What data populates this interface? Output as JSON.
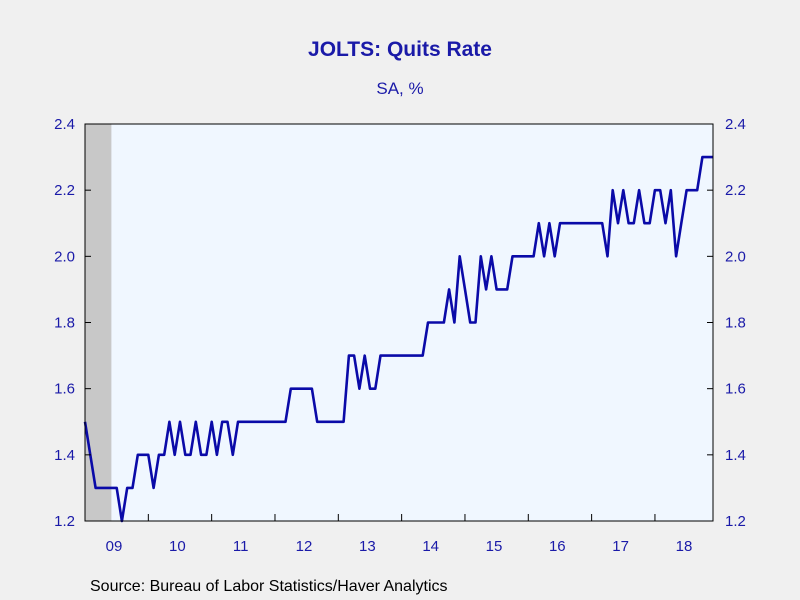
{
  "chart_data": {
    "type": "line",
    "title": "JOLTS: Quits Rate",
    "subtitle": "SA, %",
    "source": "Source:  Bureau of Labor Statistics/Haver Analytics",
    "ylim": [
      1.2,
      2.4
    ],
    "y_ticks": [
      "1.2",
      "1.4",
      "1.6",
      "1.8",
      "2.0",
      "2.2",
      "2.4"
    ],
    "x_ticks": [
      "09",
      "10",
      "11",
      "12",
      "13",
      "14",
      "15",
      "16",
      "17",
      "18"
    ],
    "x_range": [
      "2009-01",
      "2018-12"
    ],
    "recession_shading": [
      "2009-01",
      "2009-06"
    ],
    "grid": false,
    "colors": {
      "line": "#0a0aa8",
      "plot_bg": "#f0f7ff",
      "recession": "#c8c8c8",
      "text": "#1a1aa8"
    },
    "series": [
      {
        "x": [
          "2009-01",
          "2009-02",
          "2009-03",
          "2009-04",
          "2009-05",
          "2009-06",
          "2009-07",
          "2009-08",
          "2009-09",
          "2009-10",
          "2009-11",
          "2009-12",
          "2010-01",
          "2010-02",
          "2010-03",
          "2010-04",
          "2010-05",
          "2010-06",
          "2010-07",
          "2010-08",
          "2010-09",
          "2010-10",
          "2010-11",
          "2010-12",
          "2011-01",
          "2011-02",
          "2011-03",
          "2011-04",
          "2011-05",
          "2011-06",
          "2011-07",
          "2011-08",
          "2011-09",
          "2011-10",
          "2011-11",
          "2011-12",
          "2012-01",
          "2012-02",
          "2012-03",
          "2012-04",
          "2012-05",
          "2012-06",
          "2012-07",
          "2012-08",
          "2012-09",
          "2012-10",
          "2012-11",
          "2012-12",
          "2013-01",
          "2013-02",
          "2013-03",
          "2013-04",
          "2013-05",
          "2013-06",
          "2013-07",
          "2013-08",
          "2013-09",
          "2013-10",
          "2013-11",
          "2013-12",
          "2014-01",
          "2014-02",
          "2014-03",
          "2014-04",
          "2014-05",
          "2014-06",
          "2014-07",
          "2014-08",
          "2014-09",
          "2014-10",
          "2014-11",
          "2014-12",
          "2015-01",
          "2015-02",
          "2015-03",
          "2015-04",
          "2015-05",
          "2015-06",
          "2015-07",
          "2015-08",
          "2015-09",
          "2015-10",
          "2015-11",
          "2015-12",
          "2016-01",
          "2016-02",
          "2016-03",
          "2016-04",
          "2016-05",
          "2016-06",
          "2016-07",
          "2016-08",
          "2016-09",
          "2016-10",
          "2016-11",
          "2016-12",
          "2017-01",
          "2017-02",
          "2017-03",
          "2017-04",
          "2017-05",
          "2017-06",
          "2017-07",
          "2017-08",
          "2017-09",
          "2017-10",
          "2017-11",
          "2017-12",
          "2018-01",
          "2018-02",
          "2018-03",
          "2018-04",
          "2018-05",
          "2018-06",
          "2018-07",
          "2018-08",
          "2018-09",
          "2018-10",
          "2018-11",
          "2018-12"
        ],
        "values": [
          1.5,
          1.4,
          1.3,
          1.3,
          1.3,
          1.3,
          1.3,
          1.2,
          1.3,
          1.3,
          1.4,
          1.4,
          1.4,
          1.3,
          1.4,
          1.4,
          1.5,
          1.4,
          1.5,
          1.4,
          1.4,
          1.5,
          1.4,
          1.4,
          1.5,
          1.4,
          1.5,
          1.5,
          1.4,
          1.5,
          1.5,
          1.5,
          1.5,
          1.5,
          1.5,
          1.5,
          1.5,
          1.5,
          1.5,
          1.6,
          1.6,
          1.6,
          1.6,
          1.6,
          1.5,
          1.5,
          1.5,
          1.5,
          1.5,
          1.5,
          1.7,
          1.7,
          1.6,
          1.7,
          1.6,
          1.6,
          1.7,
          1.7,
          1.7,
          1.7,
          1.7,
          1.7,
          1.7,
          1.7,
          1.7,
          1.8,
          1.8,
          1.8,
          1.8,
          1.9,
          1.8,
          2.0,
          1.9,
          1.8,
          1.8,
          2.0,
          1.9,
          2.0,
          1.9,
          1.9,
          1.9,
          2.0,
          2.0,
          2.0,
          2.0,
          2.0,
          2.1,
          2.0,
          2.1,
          2.0,
          2.1,
          2.1,
          2.1,
          2.1,
          2.1,
          2.1,
          2.1,
          2.1,
          2.1,
          2.0,
          2.2,
          2.1,
          2.2,
          2.1,
          2.1,
          2.2,
          2.1,
          2.1,
          2.2,
          2.2,
          2.1,
          2.2,
          2.0,
          2.1,
          2.2,
          2.2,
          2.2,
          2.3,
          2.3,
          2.3
        ]
      }
    ]
  }
}
